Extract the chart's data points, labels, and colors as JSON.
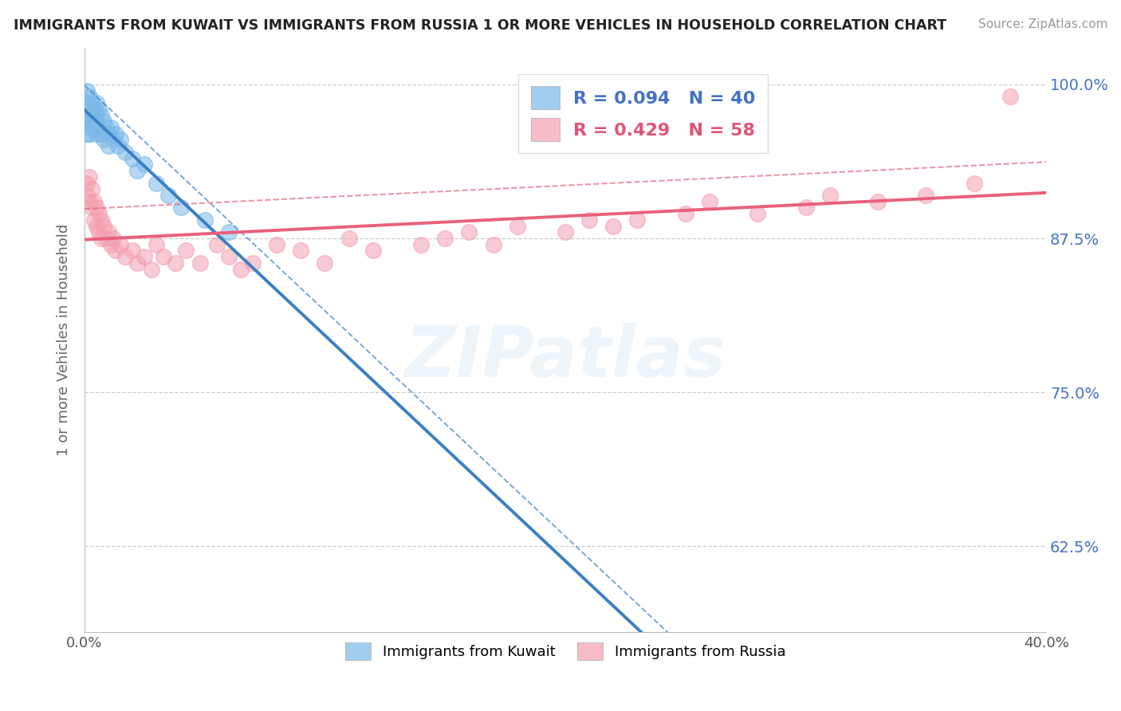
{
  "title": "IMMIGRANTS FROM KUWAIT VS IMMIGRANTS FROM RUSSIA 1 OR MORE VEHICLES IN HOUSEHOLD CORRELATION CHART",
  "source": "Source: ZipAtlas.com",
  "ylabel": "1 or more Vehicles in Household",
  "xlim": [
    0.0,
    0.4
  ],
  "ylim": [
    0.555,
    1.03
  ],
  "xticks": [
    0.0,
    0.05,
    0.1,
    0.15,
    0.2,
    0.25,
    0.3,
    0.35,
    0.4
  ],
  "xticklabels": [
    "0.0%",
    "",
    "",
    "",
    "",
    "",
    "",
    "",
    "40.0%"
  ],
  "ytick_positions": [
    0.625,
    0.75,
    0.875,
    1.0
  ],
  "yticklabels": [
    "62.5%",
    "75.0%",
    "87.5%",
    "100.0%"
  ],
  "legend_kuwait": "Immigrants from Kuwait",
  "legend_russia": "Immigrants from Russia",
  "R_kuwait": 0.094,
  "N_kuwait": 40,
  "R_russia": 0.429,
  "N_russia": 58,
  "color_kuwait": "#7ab8e8",
  "color_russia": "#f4a0b0",
  "trend_kuwait": "#3a80c4",
  "trend_russia": "#e8607a",
  "background_color": "#ffffff",
  "watermark": "ZIPatlas",
  "kuwait_x": [
    0.001,
    0.001,
    0.001,
    0.001,
    0.001,
    0.002,
    0.002,
    0.002,
    0.002,
    0.003,
    0.003,
    0.003,
    0.004,
    0.004,
    0.005,
    0.005,
    0.005,
    0.006,
    0.006,
    0.007,
    0.007,
    0.008,
    0.008,
    0.009,
    0.01,
    0.01,
    0.011,
    0.012,
    0.013,
    0.014,
    0.015,
    0.017,
    0.02,
    0.022,
    0.025,
    0.03,
    0.035,
    0.04,
    0.05,
    0.06
  ],
  "kuwait_y": [
    0.995,
    0.985,
    0.975,
    0.97,
    0.96,
    0.99,
    0.98,
    0.97,
    0.96,
    0.985,
    0.975,
    0.965,
    0.98,
    0.97,
    0.985,
    0.975,
    0.96,
    0.98,
    0.965,
    0.975,
    0.96,
    0.97,
    0.955,
    0.965,
    0.96,
    0.95,
    0.965,
    0.955,
    0.96,
    0.95,
    0.955,
    0.945,
    0.94,
    0.93,
    0.935,
    0.92,
    0.91,
    0.9,
    0.89,
    0.88
  ],
  "russia_x": [
    0.001,
    0.001,
    0.002,
    0.002,
    0.003,
    0.003,
    0.004,
    0.004,
    0.005,
    0.005,
    0.006,
    0.006,
    0.007,
    0.007,
    0.008,
    0.009,
    0.01,
    0.011,
    0.012,
    0.013,
    0.015,
    0.017,
    0.02,
    0.022,
    0.025,
    0.028,
    0.03,
    0.033,
    0.038,
    0.042,
    0.048,
    0.055,
    0.06,
    0.065,
    0.07,
    0.08,
    0.09,
    0.1,
    0.11,
    0.12,
    0.14,
    0.15,
    0.16,
    0.17,
    0.18,
    0.2,
    0.21,
    0.22,
    0.23,
    0.25,
    0.26,
    0.28,
    0.3,
    0.31,
    0.33,
    0.35,
    0.37,
    0.385
  ],
  "russia_y": [
    0.92,
    0.91,
    0.925,
    0.905,
    0.915,
    0.9,
    0.905,
    0.89,
    0.9,
    0.885,
    0.895,
    0.88,
    0.89,
    0.875,
    0.885,
    0.875,
    0.88,
    0.87,
    0.875,
    0.865,
    0.87,
    0.86,
    0.865,
    0.855,
    0.86,
    0.85,
    0.87,
    0.86,
    0.855,
    0.865,
    0.855,
    0.87,
    0.86,
    0.85,
    0.855,
    0.87,
    0.865,
    0.855,
    0.875,
    0.865,
    0.87,
    0.875,
    0.88,
    0.87,
    0.885,
    0.88,
    0.89,
    0.885,
    0.89,
    0.895,
    0.905,
    0.895,
    0.9,
    0.91,
    0.905,
    0.91,
    0.92,
    0.99
  ]
}
